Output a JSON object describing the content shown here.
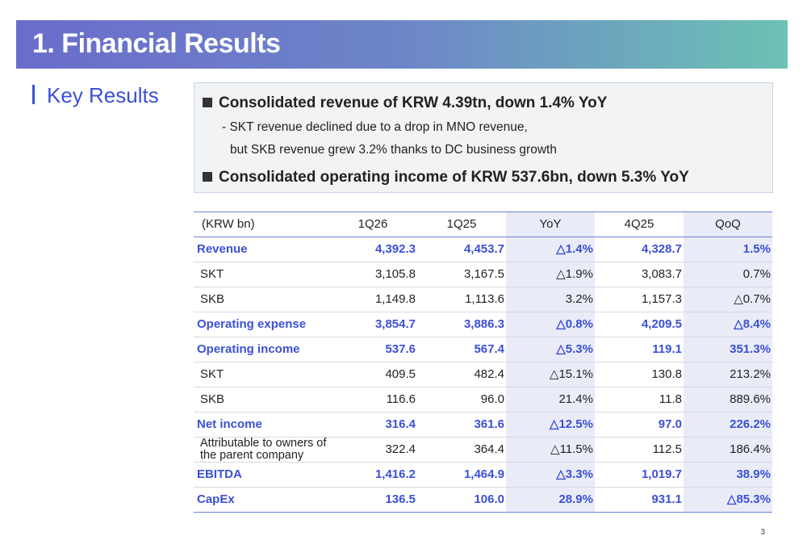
{
  "header": {
    "title": "1. Financial Results"
  },
  "section": {
    "title": "Key Results"
  },
  "summary": {
    "bullets": [
      {
        "text": "Consolidated revenue of KRW 4.39tn, down 1.4% YoY",
        "details": [
          "- SKT revenue declined due to a drop in MNO revenue,",
          "but SKB revenue grew 3.2% thanks to DC business growth"
        ]
      },
      {
        "text": "Consolidated operating income of KRW 537.6bn, down 5.3% YoY",
        "details": []
      }
    ]
  },
  "table": {
    "columns": [
      "(KRW bn)",
      "1Q26",
      "1Q25",
      "YoY",
      "4Q25",
      "QoQ"
    ],
    "rows": [
      {
        "label": "Revenue",
        "values": [
          "4,392.3",
          "4,453.7",
          "△1.4%",
          "4,328.7",
          "1.5%"
        ],
        "emphasis": true
      },
      {
        "label": "SKT",
        "values": [
          "3,105.8",
          "3,167.5",
          "△1.9%",
          "3,083.7",
          "0.7%"
        ],
        "emphasis": false
      },
      {
        "label": "SKB",
        "values": [
          "1,149.8",
          "1,113.6",
          "3.2%",
          "1,157.3",
          "△0.7%"
        ],
        "emphasis": false
      },
      {
        "label": "Operating expense",
        "values": [
          "3,854.7",
          "3,886.3",
          "△0.8%",
          "4,209.5",
          "△8.4%"
        ],
        "emphasis": true
      },
      {
        "label": "Operating income",
        "values": [
          "537.6",
          "567.4",
          "△5.3%",
          "119.1",
          "351.3%"
        ],
        "emphasis": true
      },
      {
        "label": "SKT",
        "values": [
          "409.5",
          "482.4",
          "△15.1%",
          "130.8",
          "213.2%"
        ],
        "emphasis": false
      },
      {
        "label": "SKB",
        "values": [
          "116.6",
          "96.0",
          "21.4%",
          "11.8",
          "889.6%"
        ],
        "emphasis": false
      },
      {
        "label": "Net income",
        "values": [
          "316.4",
          "361.6",
          "△12.5%",
          "97.0",
          "226.2%"
        ],
        "emphasis": true
      },
      {
        "label": "Attributable to owners of the parent company",
        "values": [
          "322.4",
          "364.4",
          "△11.5%",
          "112.5",
          "186.4%"
        ],
        "emphasis": false
      },
      {
        "label": "EBITDA",
        "values": [
          "1,416.2",
          "1,464.9",
          "△3.3%",
          "1,019.7",
          "38.9%"
        ],
        "emphasis": true
      },
      {
        "label": "CapEx",
        "values": [
          "136.5",
          "106.0",
          "28.9%",
          "931.1",
          "△85.3%"
        ],
        "emphasis": true
      }
    ]
  },
  "footer": {
    "page": "3"
  }
}
